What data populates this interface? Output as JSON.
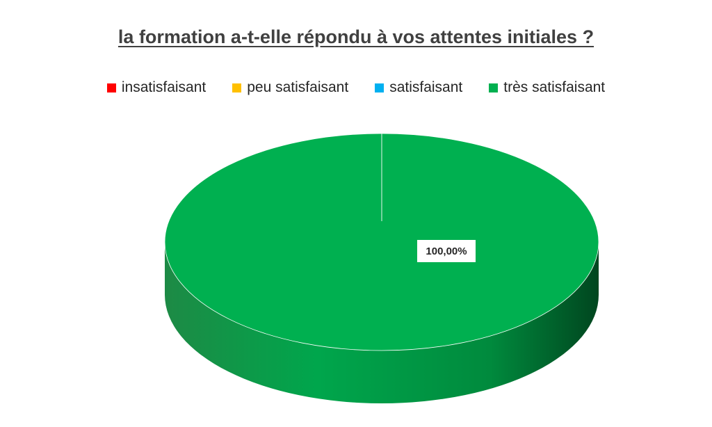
{
  "chart_data": {
    "type": "pie",
    "title": "la formation a-t-elle répondu à vos attentes initiales ?",
    "categories": [
      "insatisfaisant",
      "peu satisfaisant",
      "satisfaisant",
      "très satisfaisant"
    ],
    "values": [
      0,
      0,
      0,
      100
    ],
    "data_labels": [
      "",
      "",
      "",
      "100,00%"
    ],
    "colors": [
      "#ff0000",
      "#ffc000",
      "#00b0f0",
      "#00b050"
    ],
    "legend_position": "top",
    "style": "3d"
  }
}
